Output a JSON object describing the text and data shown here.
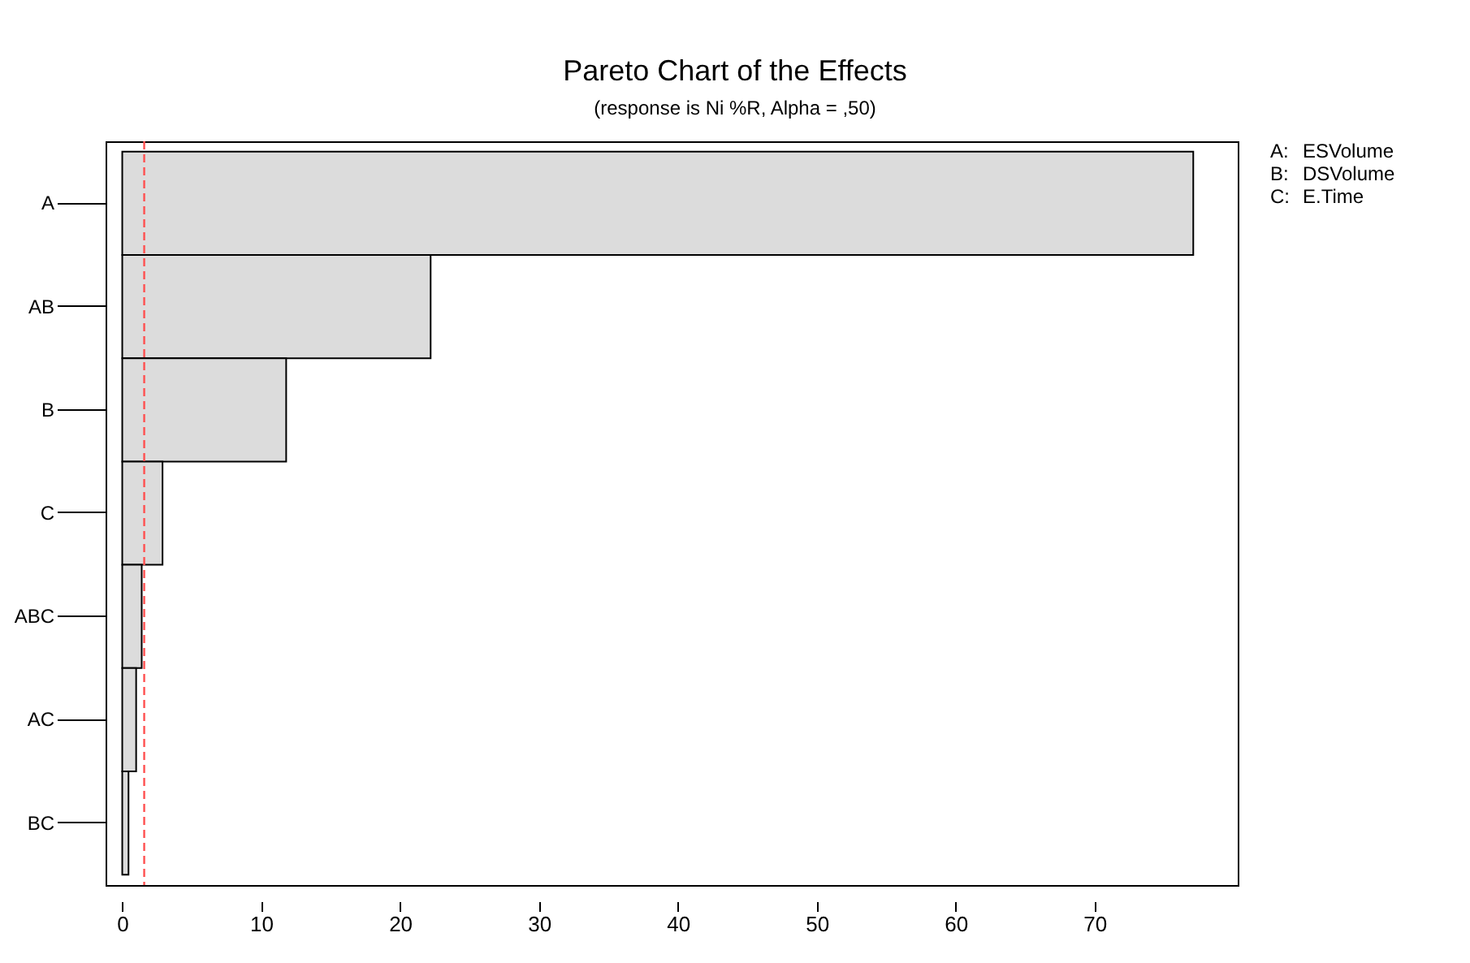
{
  "chart_data": {
    "type": "bar",
    "orientation": "horizontal",
    "title": "Pareto Chart of the Effects",
    "subtitle": "(response is Ni %R, Alpha = ,50)",
    "categories": [
      "A",
      "AB",
      "B",
      "C",
      "ABC",
      "AC",
      "BC"
    ],
    "values": [
      77.1,
      22.2,
      11.8,
      2.9,
      1.4,
      1.0,
      0.45
    ],
    "color": "#dcdcdc",
    "xlim": [
      -1.2,
      80.3
    ],
    "xticks": [
      0,
      10,
      20,
      30,
      40,
      50,
      60,
      70
    ],
    "grid": false,
    "ref_lines": [
      {
        "axis": "x",
        "value": 1.58,
        "color": "#ff5050",
        "line_style": "dashed"
      }
    ],
    "annotations": [
      "A: ESVolume",
      "B: DSVolume",
      "C: E.Time"
    ]
  }
}
